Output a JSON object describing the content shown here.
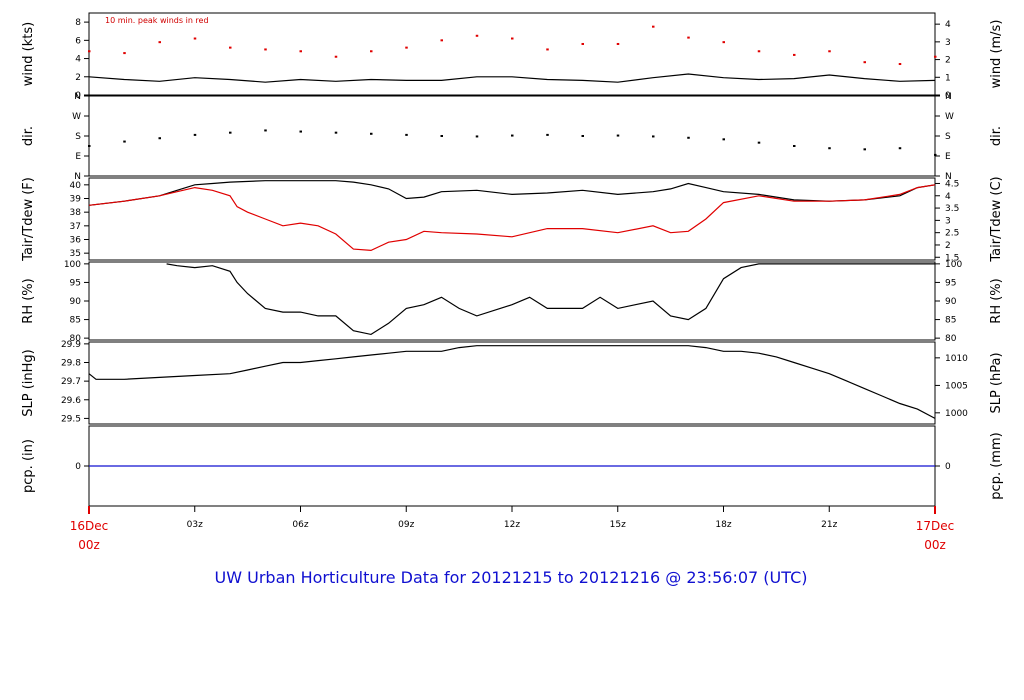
{
  "title": "UW Urban Horticulture Data for 20121215  to  20121216 @ 23:56:07  (UTC)",
  "colors": {
    "black": "#000000",
    "red": "#e00000",
    "blue": "#1010d0"
  },
  "x_axis": {
    "range_hours": [
      0,
      24
    ],
    "start_label": [
      "16Dec",
      "00z"
    ],
    "end_label": [
      "17Dec",
      "00z"
    ],
    "ticks": [
      {
        "hour": 3,
        "label": "03z"
      },
      {
        "hour": 6,
        "label": "06z"
      },
      {
        "hour": 9,
        "label": "09z"
      },
      {
        "hour": 12,
        "label": "12z"
      },
      {
        "hour": 15,
        "label": "15z"
      },
      {
        "hour": 18,
        "label": "18z"
      },
      {
        "hour": 21,
        "label": "21z"
      }
    ]
  },
  "chart_data": [
    {
      "type": "line",
      "id": "wind",
      "ylabel_left": "wind (kts)",
      "ylabel_right": "wind (m/s)",
      "annotation": "10 min. peak winds in red",
      "ylim": [
        0,
        9
      ],
      "yticks_left": [
        0,
        2,
        4,
        6,
        8
      ],
      "yticks_right": [
        {
          "v": 0,
          "label": "0"
        },
        {
          "v": 1.944,
          "label": "1"
        },
        {
          "v": 3.888,
          "label": "2"
        },
        {
          "v": 5.832,
          "label": "3"
        },
        {
          "v": 7.776,
          "label": "4"
        }
      ],
      "series": [
        {
          "name": "wind",
          "color": "#000000",
          "x": [
            0,
            1,
            2,
            3,
            4,
            5,
            6,
            7,
            8,
            9,
            10,
            11,
            12,
            13,
            14,
            15,
            16,
            17,
            18,
            19,
            20,
            21,
            22,
            23,
            24
          ],
          "y": [
            2.0,
            1.7,
            1.5,
            1.9,
            1.7,
            1.4,
            1.7,
            1.5,
            1.7,
            1.6,
            1.6,
            2.0,
            2.0,
            1.7,
            1.6,
            1.4,
            1.9,
            2.3,
            1.9,
            1.7,
            1.8,
            2.2,
            1.8,
            1.5,
            1.6
          ]
        },
        {
          "name": "peak",
          "color": "#e00000",
          "style": "points",
          "x": [
            0,
            1,
            2,
            3,
            4,
            5,
            6,
            7,
            8,
            9,
            10,
            11,
            12,
            13,
            14,
            15,
            16,
            17,
            18,
            19,
            20,
            21,
            22,
            23,
            24
          ],
          "y": [
            4.8,
            4.6,
            5.8,
            6.2,
            5.2,
            5.0,
            4.8,
            4.2,
            4.8,
            5.2,
            6.0,
            6.5,
            6.2,
            5.0,
            5.6,
            5.6,
            7.5,
            6.3,
            5.8,
            4.8,
            4.4,
            4.8,
            3.6,
            3.4,
            4.2
          ]
        }
      ]
    },
    {
      "type": "scatter",
      "id": "dir",
      "ylabel_left": "dir.",
      "ylabel_right": "dir.",
      "ylim": [
        0,
        360
      ],
      "yticks_left": [
        {
          "v": 0,
          "label": "N"
        },
        {
          "v": 90,
          "label": "E"
        },
        {
          "v": 180,
          "label": "S"
        },
        {
          "v": 270,
          "label": "W"
        },
        {
          "v": 360,
          "label": "N"
        }
      ],
      "yticks_right": [
        {
          "v": 0,
          "label": "N"
        },
        {
          "v": 90,
          "label": "E"
        },
        {
          "v": 180,
          "label": "S"
        },
        {
          "v": 270,
          "label": "W"
        },
        {
          "v": 360,
          "label": "N"
        }
      ],
      "series": [
        {
          "name": "direction",
          "color": "#000000",
          "x": [
            0,
            1,
            2,
            3,
            4,
            5,
            6,
            7,
            8,
            9,
            10,
            11,
            12,
            13,
            14,
            15,
            16,
            17,
            18,
            19,
            20,
            21,
            22,
            23,
            24
          ],
          "y": [
            135,
            155,
            170,
            185,
            195,
            205,
            200,
            195,
            190,
            185,
            180,
            178,
            182,
            185,
            180,
            182,
            178,
            172,
            165,
            150,
            135,
            125,
            120,
            125,
            95
          ]
        }
      ]
    },
    {
      "type": "line",
      "id": "temp",
      "ylabel_left": "Tair/Tdew (F)",
      "ylabel_right": "Tair/Tdew (C)",
      "ylim": [
        34.5,
        40.5
      ],
      "yticks_left": [
        35,
        36,
        37,
        38,
        39,
        40
      ],
      "yticks_right": [
        {
          "v": 34.7,
          "label": "1.5"
        },
        {
          "v": 35.6,
          "label": "2"
        },
        {
          "v": 36.5,
          "label": "2.5"
        },
        {
          "v": 37.4,
          "label": "3"
        },
        {
          "v": 38.3,
          "label": "3.5"
        },
        {
          "v": 39.2,
          "label": "4"
        },
        {
          "v": 40.1,
          "label": "4.5"
        }
      ],
      "series": [
        {
          "name": "Tair",
          "color": "#000000",
          "x": [
            0,
            1,
            2,
            2.5,
            3,
            3.5,
            4,
            5,
            6,
            7,
            7.5,
            8,
            8.5,
            9,
            9.5,
            10,
            11,
            12,
            13,
            14,
            15,
            16,
            16.5,
            17,
            17.5,
            18,
            19,
            20,
            21,
            22,
            23,
            23.5,
            24
          ],
          "y": [
            38.5,
            38.8,
            39.2,
            39.6,
            40.0,
            40.1,
            40.2,
            40.3,
            40.3,
            40.3,
            40.2,
            40.0,
            39.7,
            39.0,
            39.1,
            39.5,
            39.6,
            39.3,
            39.4,
            39.6,
            39.3,
            39.5,
            39.7,
            40.1,
            39.8,
            39.5,
            39.3,
            38.9,
            38.8,
            38.9,
            39.2,
            39.8,
            40.0
          ]
        },
        {
          "name": "Tdew",
          "color": "#e00000",
          "x": [
            0,
            1,
            2,
            2.5,
            3,
            3.5,
            4,
            4.2,
            4.5,
            5,
            5.5,
            6,
            6.5,
            7,
            7.5,
            8,
            8.5,
            9,
            9.5,
            10,
            11,
            12,
            13,
            14,
            15,
            16,
            16.5,
            17,
            17.5,
            18,
            19,
            20,
            21,
            22,
            23,
            23.5,
            24
          ],
          "y": [
            38.5,
            38.8,
            39.2,
            39.5,
            39.8,
            39.6,
            39.2,
            38.4,
            38.0,
            37.5,
            37.0,
            37.2,
            37.0,
            36.4,
            35.3,
            35.2,
            35.8,
            36.0,
            36.6,
            36.5,
            36.4,
            36.2,
            36.8,
            36.8,
            36.5,
            37.0,
            36.5,
            36.6,
            37.5,
            38.7,
            39.2,
            38.8,
            38.8,
            38.9,
            39.3,
            39.8,
            40.0
          ]
        }
      ]
    },
    {
      "type": "line",
      "id": "rh",
      "ylabel_left": "RH (%)",
      "ylabel_right": "RH (%)",
      "ylim": [
        79.5,
        100.5
      ],
      "yticks_left": [
        80,
        85,
        90,
        95,
        100
      ],
      "yticks_right": [
        {
          "v": 80,
          "label": "80"
        },
        {
          "v": 85,
          "label": "85"
        },
        {
          "v": 90,
          "label": "90"
        },
        {
          "v": 95,
          "label": "95"
        },
        {
          "v": 100,
          "label": "100"
        }
      ],
      "series": [
        {
          "name": "RH",
          "color": "#000000",
          "x": [
            2.2,
            2.5,
            3,
            3.5,
            4,
            4.2,
            4.5,
            5,
            5.5,
            6,
            6.5,
            7,
            7.5,
            8,
            8.5,
            9,
            9.5,
            10,
            10.5,
            11,
            12,
            12.5,
            13,
            14,
            14.5,
            15,
            15.5,
            16,
            16.5,
            17,
            17.5,
            18,
            18.5,
            19,
            19.5,
            20,
            21,
            22,
            23,
            23.5,
            24
          ],
          "y": [
            100,
            99.5,
            99,
            99.5,
            98,
            95,
            92,
            88,
            87,
            87,
            86,
            86,
            82,
            81,
            84,
            88,
            89,
            91,
            88,
            86,
            89,
            91,
            88,
            88,
            91,
            88,
            89,
            90,
            86,
            85,
            88,
            96,
            99,
            100,
            100,
            100,
            100,
            100,
            100,
            100,
            100
          ]
        }
      ]
    },
    {
      "type": "line",
      "id": "slp",
      "ylabel_left": "SLP (inHg)",
      "ylabel_right": "SLP (hPa)",
      "ylim": [
        29.47,
        29.91
      ],
      "yticks_left": [
        29.5,
        29.6,
        29.7,
        29.8,
        29.9
      ],
      "yticks_right": [
        {
          "v": 29.53,
          "label": "1000"
        },
        {
          "v": 29.677,
          "label": "1005"
        },
        {
          "v": 29.825,
          "label": "1010"
        }
      ],
      "series": [
        {
          "name": "SLP",
          "color": "#000000",
          "x": [
            0,
            0.2,
            1,
            2,
            3,
            4,
            4.5,
            5,
            5.5,
            6,
            6.5,
            7,
            7.5,
            8,
            8.5,
            9,
            10,
            10.5,
            11,
            12,
            13,
            14,
            15,
            16,
            17,
            17.5,
            18,
            18.5,
            19,
            19.5,
            20,
            20.5,
            21,
            21.5,
            22,
            22.5,
            23,
            23.5,
            24
          ],
          "y": [
            29.74,
            29.71,
            29.71,
            29.72,
            29.73,
            29.74,
            29.76,
            29.78,
            29.8,
            29.8,
            29.81,
            29.82,
            29.83,
            29.84,
            29.85,
            29.86,
            29.86,
            29.88,
            29.89,
            29.89,
            29.89,
            29.89,
            29.89,
            29.89,
            29.89,
            29.88,
            29.86,
            29.86,
            29.85,
            29.83,
            29.8,
            29.77,
            29.74,
            29.7,
            29.66,
            29.62,
            29.58,
            29.55,
            29.5
          ]
        }
      ]
    },
    {
      "type": "line",
      "id": "pcp",
      "ylabel_left": "pcp. (in)",
      "ylabel_right": "pcp. (mm)",
      "ylim": [
        -0.5,
        0.5
      ],
      "yticks_left": [
        0
      ],
      "yticks_right": [
        {
          "v": 0,
          "label": "0"
        }
      ],
      "series": [
        {
          "name": "precip",
          "color": "#1010d0",
          "x": [
            0,
            24
          ],
          "y": [
            0,
            0
          ]
        }
      ]
    }
  ]
}
